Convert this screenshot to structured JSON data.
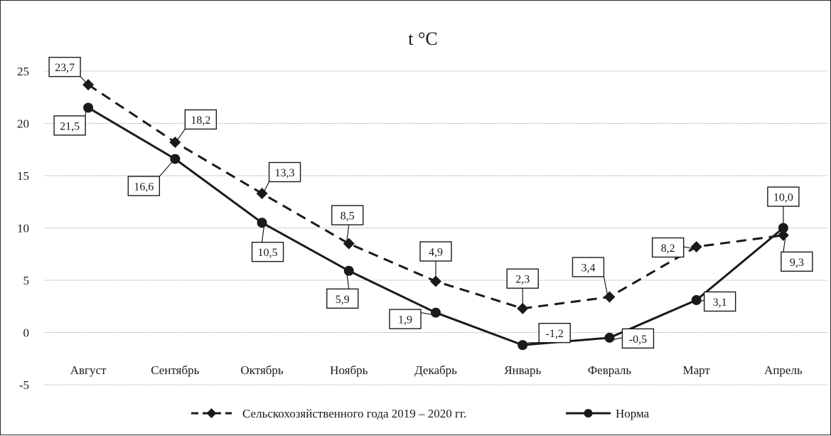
{
  "chart_data": {
    "type": "line",
    "title": "t °C",
    "categories": [
      "Август",
      "Сентябрь",
      "Октябрь",
      "Ноябрь",
      "Декабрь",
      "Январь",
      "Февраль",
      "Март",
      "Апрель"
    ],
    "series": [
      {
        "name": "Сельскохозяйственного года 2019 – 2020 гг.",
        "values": [
          23.7,
          18.2,
          13.3,
          8.5,
          4.9,
          2.3,
          3.4,
          8.2,
          9.3
        ],
        "labels": [
          "23,7",
          "18,2",
          "13,3",
          "8,5",
          "4,9",
          "2,3",
          "3,4",
          "8,2",
          "9,3"
        ],
        "line_style": "dashed",
        "marker": "diamond",
        "color": "#1a1a1a"
      },
      {
        "name": "Норма",
        "values": [
          21.5,
          16.6,
          10.5,
          5.9,
          1.9,
          -1.2,
          -0.5,
          3.1,
          10.0
        ],
        "labels": [
          "21,5",
          "16,6",
          "10,5",
          "5,9",
          "1,9",
          "-1,2",
          "-0,5",
          "3,1",
          "10,0"
        ],
        "line_style": "solid",
        "marker": "circle",
        "color": "#1a1a1a"
      }
    ],
    "yticks": [
      "25",
      "20",
      "15",
      "10",
      "5",
      "0",
      "-5"
    ],
    "ylim": [
      -5,
      25
    ],
    "grid": true,
    "legend_position": "bottom"
  }
}
